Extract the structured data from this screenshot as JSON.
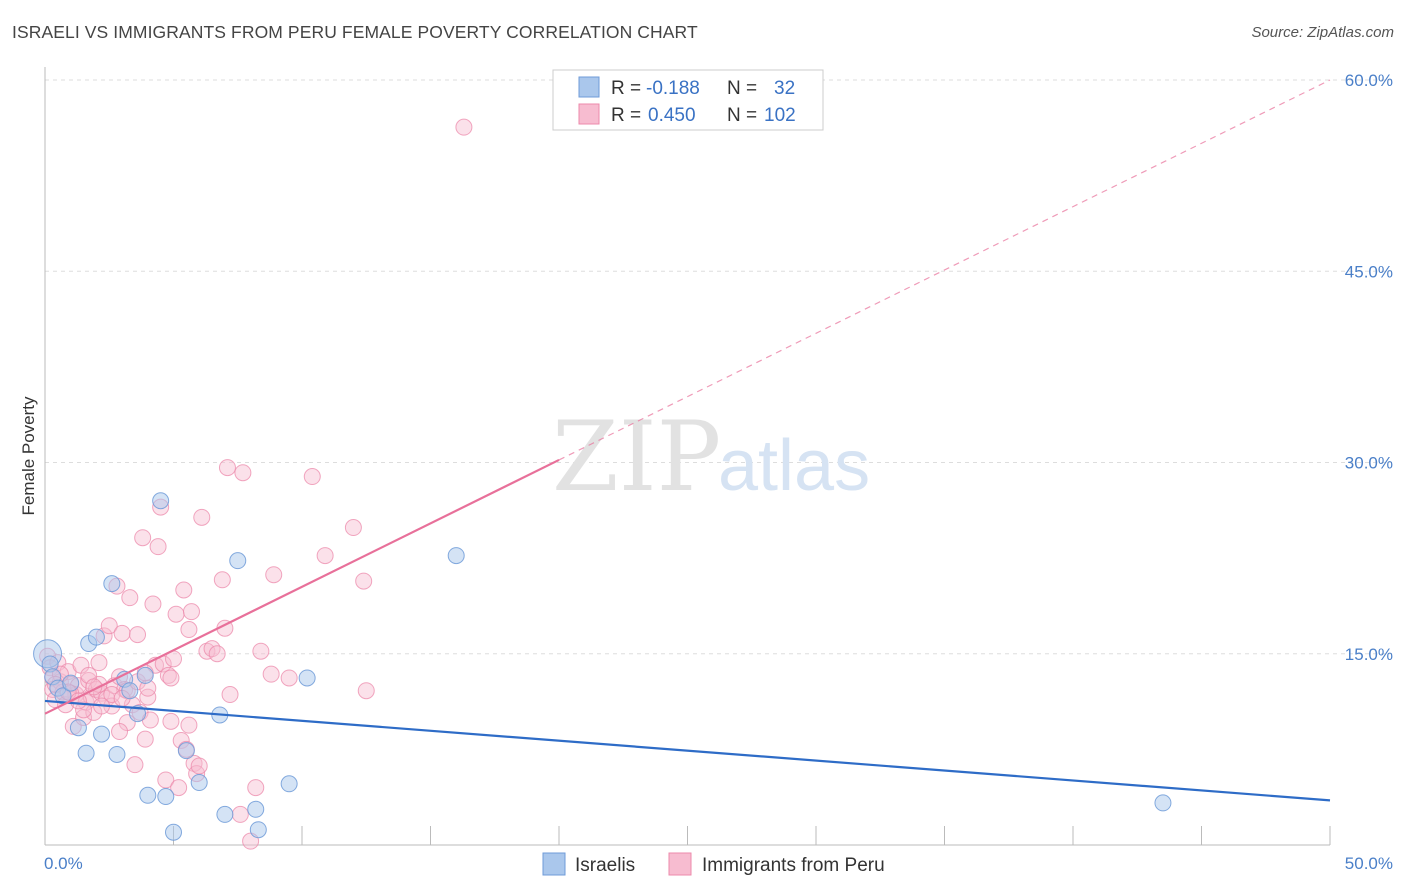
{
  "title": "ISRAELI VS IMMIGRANTS FROM PERU FEMALE POVERTY CORRELATION CHART",
  "source": "Source: ZipAtlas.com",
  "watermark": {
    "zip": "ZIP",
    "atlas": "atlas"
  },
  "legend_box": {
    "rows": [
      {
        "r_label": "R =",
        "r_value": "-0.188",
        "n_label": "N =",
        "n_value": "32"
      },
      {
        "r_label": "R =",
        "r_value": "0.450",
        "n_label": "N =",
        "n_value": "102"
      }
    ]
  },
  "bottom_legend": [
    "Israelis",
    "Immigrants from Peru"
  ],
  "colors": {
    "israelis_fill": "#aac7ec",
    "israelis_stroke": "#6f9bd8",
    "israelis_line": "#2e6cc7",
    "peru_fill": "#f7bcd0",
    "peru_stroke": "#ec8aab",
    "peru_line": "#e8709a",
    "grid": "#dddddd",
    "axis_label": "#4a7fc8"
  },
  "chart_data": {
    "type": "scatter",
    "xlabel": "",
    "ylabel": "Female Poverty",
    "xlim": [
      0,
      50
    ],
    "ylim": [
      0,
      60
    ],
    "x_ticks": [
      "0.0%",
      "50.0%"
    ],
    "y_ticks": [
      {
        "value": 15,
        "label": "15.0%"
      },
      {
        "value": 30,
        "label": "30.0%"
      },
      {
        "value": 45,
        "label": "45.0%"
      },
      {
        "value": 60,
        "label": "60.0%"
      }
    ],
    "grid": true,
    "legend_position": "top-center",
    "series": [
      {
        "name": "Israelis",
        "r": -0.188,
        "n": 32,
        "trend": {
          "x": [
            0,
            50
          ],
          "y": [
            11.3,
            3.5
          ],
          "dashed_extension": false
        },
        "points": [
          [
            0.1,
            15.0
          ],
          [
            0.2,
            14.2
          ],
          [
            0.3,
            13.2
          ],
          [
            0.5,
            12.3
          ],
          [
            0.7,
            11.7
          ],
          [
            1.0,
            12.7
          ],
          [
            1.3,
            9.2
          ],
          [
            1.6,
            7.2
          ],
          [
            1.7,
            15.8
          ],
          [
            2.0,
            16.3
          ],
          [
            2.2,
            8.7
          ],
          [
            2.6,
            20.5
          ],
          [
            2.8,
            7.1
          ],
          [
            3.1,
            13.0
          ],
          [
            3.3,
            12.1
          ],
          [
            3.6,
            10.3
          ],
          [
            3.9,
            13.3
          ],
          [
            4.0,
            3.9
          ],
          [
            4.5,
            27.0
          ],
          [
            4.7,
            3.8
          ],
          [
            5.0,
            1.0
          ],
          [
            5.5,
            7.4
          ],
          [
            6.0,
            4.9
          ],
          [
            6.8,
            10.2
          ],
          [
            7.0,
            2.4
          ],
          [
            7.5,
            22.3
          ],
          [
            8.2,
            2.8
          ],
          [
            8.3,
            1.2
          ],
          [
            9.5,
            4.8
          ],
          [
            10.2,
            13.1
          ],
          [
            16.0,
            22.7
          ],
          [
            43.5,
            3.3
          ]
        ]
      },
      {
        "name": "Immigrants from Peru",
        "r": 0.45,
        "n": 102,
        "trend": {
          "x": [
            0,
            20
          ],
          "y": [
            10.3,
            30.2
          ],
          "dashed_extension": true,
          "dash_to": [
            50,
            60
          ]
        },
        "points": [
          [
            0.1,
            14.8
          ],
          [
            0.2,
            13.9
          ],
          [
            0.3,
            13.1
          ],
          [
            0.3,
            12.2
          ],
          [
            0.4,
            11.4
          ],
          [
            0.5,
            14.3
          ],
          [
            0.6,
            12.8
          ],
          [
            0.7,
            12.0
          ],
          [
            0.8,
            11.0
          ],
          [
            0.9,
            13.6
          ],
          [
            1.0,
            12.6
          ],
          [
            1.1,
            9.3
          ],
          [
            1.2,
            11.8
          ],
          [
            1.3,
            12.5
          ],
          [
            1.4,
            14.1
          ],
          [
            1.5,
            10.0
          ],
          [
            1.6,
            11.2
          ],
          [
            1.7,
            12.9
          ],
          [
            1.8,
            11.6
          ],
          [
            1.9,
            10.4
          ],
          [
            2.0,
            12.2
          ],
          [
            2.1,
            14.3
          ],
          [
            2.2,
            11.9
          ],
          [
            2.3,
            16.4
          ],
          [
            2.4,
            11.5
          ],
          [
            2.5,
            17.2
          ],
          [
            2.6,
            10.9
          ],
          [
            2.7,
            12.5
          ],
          [
            2.8,
            20.3
          ],
          [
            2.9,
            13.2
          ],
          [
            3.0,
            16.6
          ],
          [
            3.1,
            12.2
          ],
          [
            3.2,
            9.6
          ],
          [
            3.3,
            19.4
          ],
          [
            3.4,
            11.0
          ],
          [
            3.5,
            6.3
          ],
          [
            3.6,
            16.5
          ],
          [
            3.7,
            10.4
          ],
          [
            3.8,
            24.1
          ],
          [
            3.9,
            8.3
          ],
          [
            4.0,
            11.6
          ],
          [
            4.1,
            9.8
          ],
          [
            4.2,
            18.9
          ],
          [
            4.3,
            14.1
          ],
          [
            4.4,
            23.4
          ],
          [
            4.5,
            26.5
          ],
          [
            4.6,
            14.2
          ],
          [
            4.7,
            5.1
          ],
          [
            4.8,
            13.3
          ],
          [
            4.9,
            9.7
          ],
          [
            5.0,
            14.6
          ],
          [
            5.1,
            18.1
          ],
          [
            5.2,
            4.5
          ],
          [
            5.3,
            8.2
          ],
          [
            5.4,
            20.0
          ],
          [
            5.5,
            7.5
          ],
          [
            5.6,
            16.9
          ],
          [
            5.7,
            18.3
          ],
          [
            5.8,
            6.4
          ],
          [
            5.9,
            5.6
          ],
          [
            6.1,
            25.7
          ],
          [
            6.3,
            15.2
          ],
          [
            6.5,
            15.4
          ],
          [
            6.7,
            15.0
          ],
          [
            6.9,
            20.8
          ],
          [
            7.0,
            17.0
          ],
          [
            7.1,
            29.6
          ],
          [
            7.2,
            11.8
          ],
          [
            7.6,
            2.4
          ],
          [
            7.7,
            29.2
          ],
          [
            8.0,
            0.3
          ],
          [
            8.2,
            4.5
          ],
          [
            8.4,
            15.2
          ],
          [
            8.8,
            13.4
          ],
          [
            8.9,
            21.2
          ],
          [
            9.5,
            13.1
          ],
          [
            10.4,
            28.9
          ],
          [
            10.9,
            22.7
          ],
          [
            12.0,
            24.9
          ],
          [
            12.4,
            20.7
          ],
          [
            12.5,
            12.1
          ],
          [
            16.3,
            56.3
          ],
          [
            0.6,
            13.4
          ],
          [
            1.0,
            11.9
          ],
          [
            2.1,
            12.6
          ],
          [
            3.2,
            12.1
          ],
          [
            4.9,
            13.1
          ],
          [
            1.5,
            10.6
          ],
          [
            2.6,
            11.8
          ],
          [
            3.6,
            12.8
          ],
          [
            0.9,
            12.0
          ],
          [
            1.7,
            13.3
          ],
          [
            2.2,
            10.9
          ],
          [
            4.0,
            12.3
          ],
          [
            0.4,
            12.6
          ],
          [
            1.3,
            11.3
          ],
          [
            2.9,
            8.9
          ],
          [
            3.9,
            13.5
          ],
          [
            5.6,
            9.4
          ],
          [
            6.0,
            6.2
          ],
          [
            3.0,
            11.5
          ],
          [
            1.9,
            12.4
          ]
        ]
      }
    ]
  }
}
